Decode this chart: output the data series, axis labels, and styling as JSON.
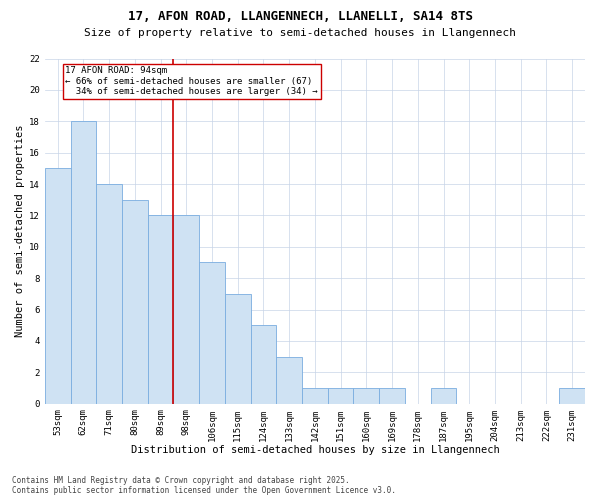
{
  "title": "17, AFON ROAD, LLANGENNECH, LLANELLI, SA14 8TS",
  "subtitle": "Size of property relative to semi-detached houses in Llangennech",
  "xlabel": "Distribution of semi-detached houses by size in Llangennech",
  "ylabel": "Number of semi-detached properties",
  "categories": [
    "53sqm",
    "62sqm",
    "71sqm",
    "80sqm",
    "89sqm",
    "98sqm",
    "106sqm",
    "115sqm",
    "124sqm",
    "133sqm",
    "142sqm",
    "151sqm",
    "160sqm",
    "169sqm",
    "178sqm",
    "187sqm",
    "195sqm",
    "204sqm",
    "213sqm",
    "222sqm",
    "231sqm"
  ],
  "values": [
    15,
    18,
    14,
    13,
    12,
    12,
    9,
    7,
    5,
    3,
    1,
    1,
    1,
    1,
    0,
    1,
    0,
    0,
    0,
    0,
    1
  ],
  "bar_color": "#cfe2f3",
  "bar_edge_color": "#7aade0",
  "highlight_label": "17 AFON ROAD: 94sqm",
  "pct_smaller": 66,
  "pct_smaller_n": 67,
  "pct_larger": 34,
  "pct_larger_n": 34,
  "ylim": [
    0,
    22
  ],
  "yticks": [
    0,
    2,
    4,
    6,
    8,
    10,
    12,
    14,
    16,
    18,
    20,
    22
  ],
  "annotation_box_color": "#ffffff",
  "annotation_box_edge": "#cc0000",
  "vline_color": "#cc0000",
  "footnote": "Contains HM Land Registry data © Crown copyright and database right 2025.\nContains public sector information licensed under the Open Government Licence v3.0.",
  "background_color": "#ffffff",
  "grid_color": "#c8d4e8",
  "title_fontsize": 9,
  "subtitle_fontsize": 8,
  "axis_label_fontsize": 7.5,
  "tick_fontsize": 6.5,
  "annotation_fontsize": 6.5,
  "footnote_fontsize": 5.5,
  "vline_x": 4.5
}
